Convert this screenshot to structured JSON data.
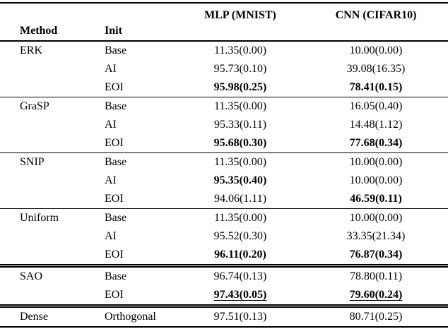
{
  "table": {
    "headers": {
      "method": "Method",
      "init": "Init",
      "col_mlp": "MLP (MNIST)",
      "col_cnn": "CNN (CIFAR10)"
    },
    "groups": [
      {
        "method": "ERK",
        "rows": [
          {
            "init": "Base",
            "mlp": "11.35(0.00)",
            "cnn": "10.00(0.00)"
          },
          {
            "init": "AI",
            "mlp": "95.73(0.10)",
            "cnn": "39.08(16.35)"
          },
          {
            "init": "EOI",
            "mlp": "95.98(0.25)",
            "cnn": "78.41(0.15)"
          }
        ]
      },
      {
        "method": "GraSP",
        "rows": [
          {
            "init": "Base",
            "mlp": "11.35(0.00)",
            "cnn": "16.05(0.40)"
          },
          {
            "init": "AI",
            "mlp": "95.33(0.11)",
            "cnn": "14.48(1.12)"
          },
          {
            "init": "EOI",
            "mlp": "95.68(0.30)",
            "cnn": "77.68(0.34)"
          }
        ]
      },
      {
        "method": "SNIP",
        "rows": [
          {
            "init": "Base",
            "mlp": "11.35(0.00)",
            "cnn": "10.00(0.00)"
          },
          {
            "init": "AI",
            "mlp": "95.35(0.40)",
            "cnn": "10.00(0.00)"
          },
          {
            "init": "EOI",
            "mlp": "94.06(1.11)",
            "cnn": "46.59(0.11)"
          }
        ]
      },
      {
        "method": "Uniform",
        "rows": [
          {
            "init": "Base",
            "mlp": "11.35(0.00)",
            "cnn": "10.00(0.00)"
          },
          {
            "init": "AI",
            "mlp": "95.52(0.30)",
            "cnn": "33.35(21.34)"
          },
          {
            "init": "EOI",
            "mlp": "96.11(0.20)",
            "cnn": "76.87(0.34)"
          }
        ]
      },
      {
        "method": "SAO",
        "rows": [
          {
            "init": "Base",
            "mlp": "96.74(0.13)",
            "cnn": "78.80(0.11)"
          },
          {
            "init": "EOI",
            "mlp": "97.43(0.05)",
            "cnn": "79.60(0.24)"
          }
        ]
      },
      {
        "method": "Dense",
        "rows": [
          {
            "init": "Orthogonal",
            "mlp": "97.51(0.13)",
            "cnn": "80.71(0.25)"
          }
        ]
      }
    ]
  }
}
